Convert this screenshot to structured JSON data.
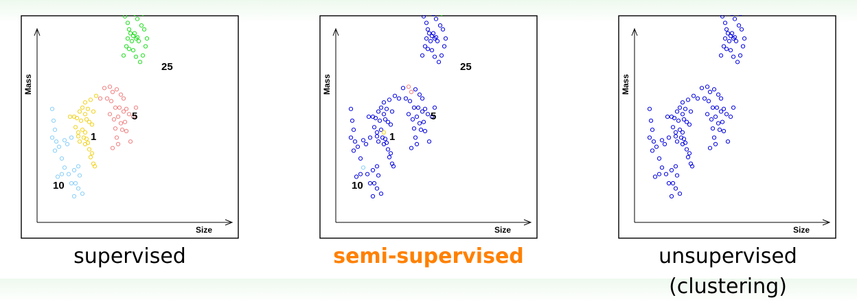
{
  "colors": {
    "frame": "#000000",
    "class_1": "#f2d21e",
    "class_5": "#f08080",
    "class_10": "#87cefa",
    "class_25": "#22dd22",
    "unlabeled": "#0000e0",
    "highlight_caption": "#ff8000"
  },
  "panels": [
    {
      "key": "supervised",
      "caption": "supervised",
      "highlighted": false,
      "x_label": "Size",
      "y_label": "Mass",
      "class_labels": [
        {
          "text": "25",
          "cls": "class_25"
        },
        {
          "text": "5",
          "cls": "class_5"
        },
        {
          "text": "1",
          "cls": "class_1"
        },
        {
          "text": "10",
          "cls": "class_10"
        }
      ],
      "color_mode": "all"
    },
    {
      "key": "semi_supervised",
      "caption": "semi-supervised",
      "highlighted": true,
      "x_label": "Size",
      "y_label": "Mass",
      "class_labels": [
        {
          "text": "25",
          "cls": "class_25"
        },
        {
          "text": "5",
          "cls": "class_5"
        },
        {
          "text": "1",
          "cls": "class_1"
        },
        {
          "text": "10",
          "cls": "class_10"
        }
      ],
      "color_mode": "few_labeled"
    },
    {
      "key": "unsupervised",
      "caption": "unsupervised (clustering)",
      "highlighted": false,
      "x_label": "Size",
      "y_label": "Mass",
      "class_labels": [],
      "color_mode": "none"
    }
  ],
  "chart_data": {
    "type": "scatter",
    "x_axis": "Size",
    "y_axis": "Mass",
    "series": [
      {
        "name": "10",
        "points": [
          [
            0.11,
            0.87
          ],
          [
            0.12,
            0.78
          ],
          [
            0.13,
            0.71
          ],
          [
            0.11,
            0.65
          ],
          [
            0.14,
            0.62
          ],
          [
            0.13,
            0.55
          ],
          [
            0.16,
            0.58
          ],
          [
            0.18,
            0.49
          ],
          [
            0.2,
            0.42
          ],
          [
            0.23,
            0.37
          ],
          [
            0.18,
            0.37
          ],
          [
            0.15,
            0.35
          ],
          [
            0.25,
            0.3
          ],
          [
            0.28,
            0.3
          ],
          [
            0.27,
            0.4
          ],
          [
            0.3,
            0.43
          ],
          [
            0.31,
            0.36
          ],
          [
            0.3,
            0.26
          ],
          [
            0.27,
            0.2
          ],
          [
            0.33,
            0.22
          ],
          [
            0.22,
            0.6
          ],
          [
            0.25,
            0.65
          ],
          [
            0.2,
            0.63
          ]
        ]
      },
      {
        "name": "1",
        "points": [
          [
            0.24,
            0.81
          ],
          [
            0.27,
            0.81
          ],
          [
            0.29,
            0.8
          ],
          [
            0.31,
            0.85
          ],
          [
            0.33,
            0.88
          ],
          [
            0.35,
            0.83
          ],
          [
            0.36,
            0.79
          ],
          [
            0.38,
            0.77
          ],
          [
            0.4,
            0.75
          ],
          [
            0.32,
            0.78
          ],
          [
            0.28,
            0.73
          ],
          [
            0.3,
            0.69
          ],
          [
            0.33,
            0.71
          ],
          [
            0.35,
            0.69
          ],
          [
            0.36,
            0.64
          ],
          [
            0.35,
            0.6
          ],
          [
            0.38,
            0.56
          ],
          [
            0.39,
            0.5
          ],
          [
            0.41,
            0.45
          ],
          [
            0.42,
            0.43
          ],
          [
            0.4,
            0.53
          ],
          [
            0.37,
            0.61
          ],
          [
            0.34,
            0.65
          ],
          [
            0.3,
            0.66
          ],
          [
            0.31,
            0.62
          ],
          [
            0.37,
            0.87
          ],
          [
            0.41,
            0.85
          ],
          [
            0.39,
            0.94
          ],
          [
            0.43,
            0.97
          ],
          [
            0.35,
            0.92
          ]
        ]
      },
      {
        "name": "5",
        "points": [
          [
            0.49,
            1.03
          ],
          [
            0.53,
            1.04
          ],
          [
            0.55,
            1.0
          ],
          [
            0.58,
            1.02
          ],
          [
            0.61,
            0.98
          ],
          [
            0.63,
            0.95
          ],
          [
            0.51,
            0.95
          ],
          [
            0.54,
            0.93
          ],
          [
            0.57,
            0.88
          ],
          [
            0.6,
            0.88
          ],
          [
            0.63,
            0.85
          ],
          [
            0.65,
            0.87
          ],
          [
            0.67,
            0.83
          ],
          [
            0.7,
            0.81
          ],
          [
            0.53,
            0.83
          ],
          [
            0.56,
            0.79
          ],
          [
            0.59,
            0.81
          ],
          [
            0.61,
            0.76
          ],
          [
            0.64,
            0.77
          ],
          [
            0.62,
            0.71
          ],
          [
            0.57,
            0.72
          ],
          [
            0.58,
            0.65
          ],
          [
            0.59,
            0.6
          ],
          [
            0.55,
            0.57
          ],
          [
            0.65,
            0.7
          ],
          [
            0.68,
            0.62
          ],
          [
            0.72,
            0.88
          ],
          [
            0.46,
            0.95
          ]
        ]
      },
      {
        "name": "25",
        "points": [
          [
            0.64,
            1.58
          ],
          [
            0.66,
            1.53
          ],
          [
            0.67,
            1.48
          ],
          [
            0.68,
            1.45
          ],
          [
            0.69,
            1.39
          ],
          [
            0.7,
            1.43
          ],
          [
            0.71,
            1.45
          ],
          [
            0.72,
            1.41
          ],
          [
            0.73,
            1.42
          ],
          [
            0.74,
            1.39
          ],
          [
            0.66,
            1.41
          ],
          [
            0.65,
            1.35
          ],
          [
            0.67,
            1.33
          ],
          [
            0.7,
            1.32
          ],
          [
            0.72,
            1.27
          ],
          [
            0.75,
            1.23
          ],
          [
            0.77,
            1.28
          ],
          [
            0.79,
            1.35
          ],
          [
            0.8,
            1.41
          ],
          [
            0.78,
            1.48
          ],
          [
            0.76,
            1.51
          ],
          [
            0.73,
            1.56
          ],
          [
            0.71,
            1.6
          ],
          [
            0.69,
            1.62
          ],
          [
            0.74,
            1.63
          ],
          [
            0.77,
            1.6
          ],
          [
            0.63,
            1.28
          ]
        ]
      }
    ]
  }
}
